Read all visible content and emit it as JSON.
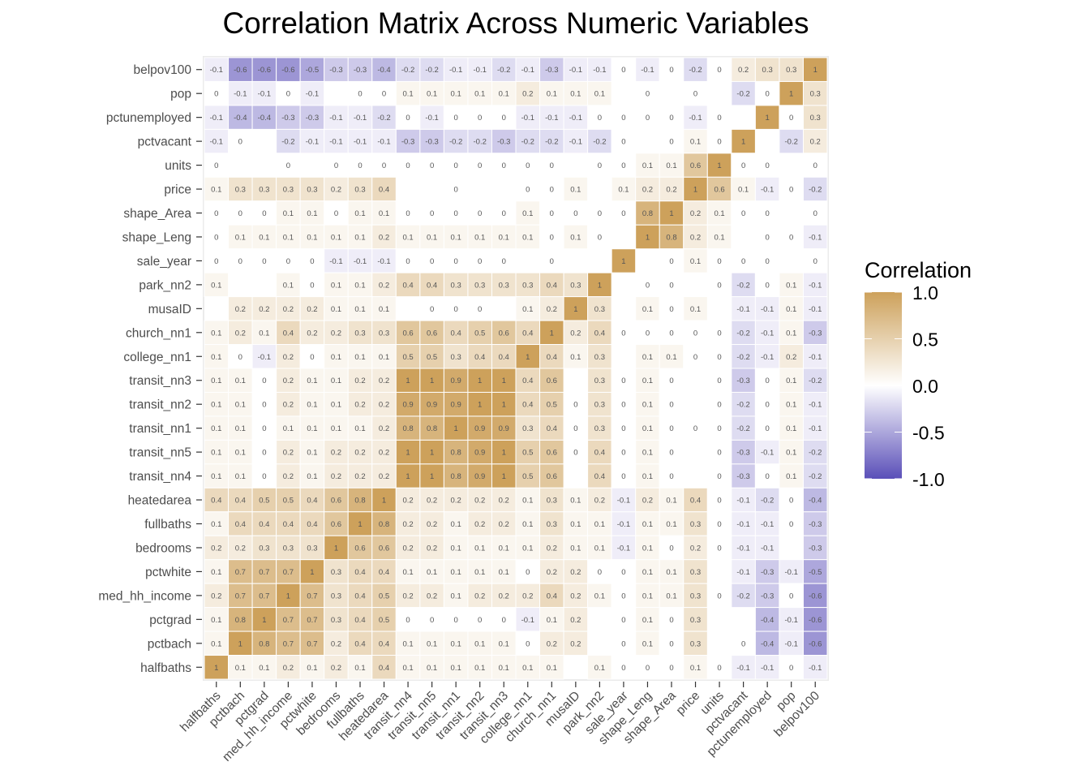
{
  "chart_data": {
    "type": "heatmap",
    "title": "Correlation Matrix Across Numeric Variables",
    "xlabel": "",
    "ylabel": "",
    "legend": {
      "title": "Correlation",
      "position": "right",
      "ticks": [
        "1.0",
        "0.5",
        "0.0",
        "-0.5",
        "-1.0"
      ],
      "tick_values": [
        1,
        0.5,
        0,
        -0.5,
        -1
      ],
      "low_color": "#5a4fb8",
      "mid_color": "#ffffff",
      "high_color": "#cda15b",
      "limits": [
        -1,
        1
      ]
    },
    "x_categories": [
      "halfbaths",
      "pctbach",
      "pctgrad",
      "med_hh_income",
      "pctwhite",
      "bedrooms",
      "fullbaths",
      "heatedarea",
      "transit_nn4",
      "transit_nn5",
      "transit_nn1",
      "transit_nn2",
      "transit_nn3",
      "college_nn1",
      "church_nn1",
      "musaID",
      "park_nn2",
      "sale_year",
      "shape_Leng",
      "shape_Area",
      "price",
      "units",
      "pctvacant",
      "pctunemployed",
      "pop",
      "belpov100"
    ],
    "y_categories_top_to_bottom": [
      "belpov100",
      "pop",
      "pctunemployed",
      "pctvacant",
      "units",
      "price",
      "shape_Area",
      "shape_Leng",
      "sale_year",
      "park_nn2",
      "musaID",
      "church_nn1",
      "college_nn1",
      "transit_nn3",
      "transit_nn2",
      "transit_nn1",
      "transit_nn5",
      "transit_nn4",
      "heatedarea",
      "fullbaths",
      "bedrooms",
      "pctwhite",
      "med_hh_income",
      "pctgrad",
      "pctbach",
      "halfbaths"
    ],
    "values": [
      [
        -0.1,
        -0.6,
        -0.6,
        -0.6,
        -0.5,
        -0.3,
        -0.3,
        -0.4,
        -0.2,
        -0.2,
        -0.1,
        -0.1,
        -0.2,
        -0.1,
        -0.3,
        -0.1,
        -0.1,
        0,
        -0.1,
        0,
        -0.2,
        0,
        0.2,
        0.3,
        0.3,
        1
      ],
      [
        0,
        -0.1,
        -0.1,
        0,
        -0.1,
        null,
        0,
        0,
        0.1,
        0.1,
        0.1,
        0.1,
        0.1,
        0.2,
        0.1,
        0.1,
        0.1,
        null,
        0,
        null,
        0,
        null,
        -0.2,
        0,
        1,
        0.3
      ],
      [
        -0.1,
        -0.4,
        -0.4,
        -0.3,
        -0.3,
        -0.1,
        -0.1,
        -0.2,
        0,
        -0.1,
        0,
        0,
        0,
        -0.1,
        -0.1,
        -0.1,
        0,
        0,
        0,
        0,
        -0.1,
        0,
        null,
        1,
        0,
        0.3
      ],
      [
        -0.1,
        0,
        null,
        -0.2,
        -0.1,
        -0.1,
        -0.1,
        -0.1,
        -0.3,
        -0.3,
        -0.2,
        -0.2,
        -0.3,
        -0.2,
        -0.2,
        -0.1,
        -0.2,
        0,
        null,
        0,
        0.1,
        0,
        1,
        null,
        -0.2,
        0.2
      ],
      [
        0,
        null,
        null,
        0,
        null,
        0,
        0,
        0,
        0,
        0,
        0,
        0,
        0,
        0,
        0,
        null,
        0,
        0,
        0.1,
        0.1,
        0.6,
        1,
        0,
        0,
        null,
        0
      ],
      [
        0.1,
        0.3,
        0.3,
        0.3,
        0.3,
        0.2,
        0.3,
        0.4,
        null,
        null,
        0,
        null,
        null,
        0,
        0,
        0.1,
        null,
        0.1,
        0.2,
        0.2,
        1,
        0.6,
        0.1,
        -0.1,
        0,
        -0.2
      ],
      [
        0,
        0,
        0,
        0.1,
        0.1,
        0,
        0.1,
        0.1,
        0,
        0,
        0,
        0,
        0,
        0.1,
        0,
        0,
        0,
        0,
        0.8,
        1,
        0.2,
        0.1,
        0,
        0,
        null,
        0
      ],
      [
        0,
        0.1,
        0.1,
        0.1,
        0.1,
        0.1,
        0.1,
        0.2,
        0.1,
        0.1,
        0.1,
        0.1,
        0.1,
        0.1,
        0,
        0.1,
        0,
        null,
        1,
        0.8,
        0.2,
        0.1,
        null,
        0,
        0,
        -0.1
      ],
      [
        0,
        0,
        0,
        0,
        0,
        -0.1,
        -0.1,
        -0.1,
        0,
        0,
        0,
        0,
        0,
        null,
        0,
        null,
        null,
        1,
        null,
        0,
        0.1,
        0,
        0,
        0,
        null,
        0
      ],
      [
        0.1,
        null,
        null,
        0.1,
        0,
        0.1,
        0.1,
        0.2,
        0.4,
        0.4,
        0.3,
        0.3,
        0.3,
        0.3,
        0.4,
        0.3,
        1,
        null,
        0,
        0,
        null,
        0,
        -0.2,
        0,
        0.1,
        -0.1
      ],
      [
        null,
        0.2,
        0.2,
        0.2,
        0.2,
        0.1,
        0.1,
        0.1,
        null,
        0,
        0,
        0,
        null,
        0.1,
        0.2,
        1,
        0.3,
        null,
        0.1,
        0,
        0.1,
        null,
        -0.1,
        -0.1,
        0.1,
        -0.1
      ],
      [
        0.1,
        0.2,
        0.1,
        0.4,
        0.2,
        0.2,
        0.3,
        0.3,
        0.6,
        0.6,
        0.4,
        0.5,
        0.6,
        0.4,
        1,
        0.2,
        0.4,
        0,
        0,
        0,
        0,
        0,
        -0.2,
        -0.1,
        0.1,
        -0.3
      ],
      [
        0.1,
        0,
        -0.1,
        0.2,
        0,
        0.1,
        0.1,
        0.1,
        0.5,
        0.5,
        0.3,
        0.4,
        0.4,
        1,
        0.4,
        0.1,
        0.3,
        null,
        0.1,
        0.1,
        0,
        0,
        -0.2,
        -0.1,
        0.2,
        -0.1
      ],
      [
        0.1,
        0.1,
        0,
        0.2,
        0.1,
        0.1,
        0.2,
        0.2,
        1,
        1,
        0.9,
        1,
        1,
        0.4,
        0.6,
        null,
        0.3,
        0,
        0.1,
        0,
        null,
        0,
        -0.3,
        0,
        0.1,
        -0.2
      ],
      [
        0.1,
        0.1,
        0,
        0.2,
        0.1,
        0.1,
        0.2,
        0.2,
        0.9,
        0.9,
        0.9,
        1,
        1,
        0.4,
        0.5,
        0,
        0.3,
        0,
        0.1,
        0,
        null,
        0,
        -0.2,
        0,
        0.1,
        -0.1
      ],
      [
        0.1,
        0.1,
        0,
        0.1,
        0.1,
        0.1,
        0.1,
        0.2,
        0.8,
        0.8,
        1,
        0.9,
        0.9,
        0.3,
        0.4,
        0,
        0.3,
        0,
        0.1,
        0,
        0,
        0,
        -0.2,
        0,
        0.1,
        -0.1
      ],
      [
        0.1,
        0.1,
        0,
        0.2,
        0.1,
        0.2,
        0.2,
        0.2,
        1,
        1,
        0.8,
        0.9,
        1,
        0.5,
        0.6,
        0,
        0.4,
        0,
        0.1,
        0,
        null,
        0,
        -0.3,
        -0.1,
        0.1,
        -0.2
      ],
      [
        0.1,
        0.1,
        0,
        0.2,
        0.1,
        0.2,
        0.2,
        0.2,
        1,
        1,
        0.8,
        0.9,
        1,
        0.5,
        0.6,
        null,
        0.4,
        0,
        0.1,
        0,
        null,
        0,
        -0.3,
        0,
        0.1,
        -0.2
      ],
      [
        0.4,
        0.4,
        0.5,
        0.5,
        0.4,
        0.6,
        0.8,
        1,
        0.2,
        0.2,
        0.2,
        0.2,
        0.2,
        0.1,
        0.3,
        0.1,
        0.2,
        -0.1,
        0.2,
        0.1,
        0.4,
        0,
        -0.1,
        -0.2,
        0,
        -0.4
      ],
      [
        0.1,
        0.4,
        0.4,
        0.4,
        0.4,
        0.6,
        1,
        0.8,
        0.2,
        0.2,
        0.1,
        0.2,
        0.2,
        0.1,
        0.3,
        0.1,
        0.1,
        -0.1,
        0.1,
        0.1,
        0.3,
        0,
        -0.1,
        -0.1,
        0,
        -0.3
      ],
      [
        0.2,
        0.2,
        0.3,
        0.3,
        0.3,
        1,
        0.6,
        0.6,
        0.2,
        0.2,
        0.1,
        0.1,
        0.1,
        0.1,
        0.2,
        0.1,
        0.1,
        -0.1,
        0.1,
        0,
        0.2,
        0,
        -0.1,
        -0.1,
        null,
        -0.3
      ],
      [
        0.1,
        0.7,
        0.7,
        0.7,
        1,
        0.3,
        0.4,
        0.4,
        0.1,
        0.1,
        0.1,
        0.1,
        0.1,
        0,
        0.2,
        0.2,
        0,
        0,
        0.1,
        0.1,
        0.3,
        null,
        -0.1,
        -0.3,
        -0.1,
        -0.5
      ],
      [
        0.2,
        0.7,
        0.7,
        1,
        0.7,
        0.3,
        0.4,
        0.5,
        0.2,
        0.2,
        0.1,
        0.2,
        0.2,
        0.2,
        0.4,
        0.2,
        0.1,
        0,
        0.1,
        0.1,
        0.3,
        0,
        -0.2,
        -0.3,
        0,
        -0.6
      ],
      [
        0.1,
        0.8,
        1,
        0.7,
        0.7,
        0.3,
        0.4,
        0.5,
        0,
        0,
        0,
        0,
        0,
        -0.1,
        0.1,
        0.2,
        null,
        0,
        0.1,
        0,
        0.3,
        null,
        null,
        -0.4,
        -0.1,
        -0.6
      ],
      [
        0.1,
        1,
        0.8,
        0.7,
        0.7,
        0.2,
        0.4,
        0.4,
        0.1,
        0.1,
        0.1,
        0.1,
        0.1,
        0,
        0.2,
        0.2,
        null,
        0,
        0.1,
        0,
        0.3,
        null,
        0,
        -0.4,
        -0.1,
        -0.6
      ],
      [
        1,
        0.1,
        0.1,
        0.2,
        0.1,
        0.2,
        0.1,
        0.4,
        0.1,
        0.1,
        0.1,
        0.1,
        0.1,
        0.1,
        0.1,
        null,
        0.1,
        0,
        0,
        0,
        0.1,
        0,
        -0.1,
        -0.1,
        0,
        -0.1
      ]
    ]
  }
}
